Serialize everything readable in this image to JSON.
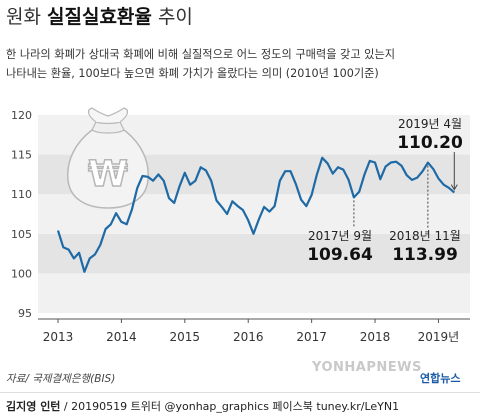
{
  "header": {
    "title_normal": "원화",
    "title_strong": "실질실효환율",
    "title_suffix": "추이",
    "subtitle_line1": "한 나라의 화폐가 상대국 화폐에 비해 실질적으로 어느 정도의 구매력을 갖고 있는지",
    "subtitle_line2": "나타내는 환율, 100보다 높으면 화폐 가치가 올랐다는 의미 (2010년 100기준)"
  },
  "chart_data": {
    "type": "line",
    "title": "원화 실질실효환율 추이",
    "ylim": [
      95,
      120
    ],
    "yticks": [
      95,
      100,
      105,
      110,
      115,
      120
    ],
    "xticks": [
      "2013",
      "2014",
      "2015",
      "2016",
      "2017",
      "2018",
      "2019년"
    ],
    "grid": "horizontal bands",
    "series_color": "#1f6aa5",
    "series": [
      {
        "name": "",
        "x": [
          "2013-01",
          "2013-02",
          "2013-03",
          "2013-04",
          "2013-05",
          "2013-06",
          "2013-07",
          "2013-08",
          "2013-09",
          "2013-10",
          "2013-11",
          "2013-12",
          "2014-01",
          "2014-02",
          "2014-03",
          "2014-04",
          "2014-05",
          "2014-06",
          "2014-07",
          "2014-08",
          "2014-09",
          "2014-10",
          "2014-11",
          "2014-12",
          "2015-01",
          "2015-02",
          "2015-03",
          "2015-04",
          "2015-05",
          "2015-06",
          "2015-07",
          "2015-08",
          "2015-09",
          "2015-10",
          "2015-11",
          "2015-12",
          "2016-01",
          "2016-02",
          "2016-03",
          "2016-04",
          "2016-05",
          "2016-06",
          "2016-07",
          "2016-08",
          "2016-09",
          "2016-10",
          "2016-11",
          "2016-12",
          "2017-01",
          "2017-02",
          "2017-03",
          "2017-04",
          "2017-05",
          "2017-06",
          "2017-07",
          "2017-08",
          "2017-09",
          "2017-10",
          "2017-11",
          "2017-12",
          "2018-01",
          "2018-02",
          "2018-03",
          "2018-04",
          "2018-05",
          "2018-06",
          "2018-07",
          "2018-08",
          "2018-09",
          "2018-10",
          "2018-11",
          "2018-12",
          "2019-01",
          "2019-02",
          "2019-03",
          "2019-04"
        ],
        "values": [
          105.4,
          103.3,
          103.0,
          101.9,
          102.6,
          100.2,
          101.9,
          102.4,
          103.6,
          105.6,
          106.2,
          107.6,
          106.5,
          106.2,
          108.1,
          110.8,
          112.3,
          112.2,
          111.7,
          112.5,
          111.7,
          109.5,
          108.9,
          111.0,
          112.7,
          111.2,
          111.7,
          113.4,
          113.0,
          111.7,
          109.2,
          108.4,
          107.5,
          109.1,
          108.5,
          108.0,
          106.7,
          105.0,
          106.8,
          108.4,
          107.8,
          108.5,
          111.7,
          112.9,
          112.9,
          111.3,
          109.3,
          108.5,
          109.9,
          112.5,
          114.6,
          113.9,
          112.6,
          113.4,
          113.1,
          111.8,
          109.6,
          110.3,
          112.5,
          114.2,
          114.0,
          111.9,
          113.5,
          114.0,
          114.1,
          113.6,
          112.4,
          111.8,
          112.1,
          112.9,
          113.99,
          113.2,
          112.0,
          111.2,
          110.8,
          110.2
        ]
      }
    ],
    "annotations": [
      {
        "label": "2017년 9월",
        "value": "109.64",
        "x": "2017-09"
      },
      {
        "label": "2018년 11월",
        "value": "113.99",
        "x": "2018-11"
      },
      {
        "label": "2019년 4월",
        "value": "110.20",
        "x": "2019-04"
      }
    ]
  },
  "source": "자료/ 국제결제은행(BIS)",
  "footer": {
    "author": "김지영 인턴",
    "meta": " / 20190519 트위터 @yonhap_graphics 페이스북 tuney.kr/LeYN1"
  },
  "logo_text": "YONHAPNEWS",
  "logo_ko": "연합뉴스",
  "icon": "money-bag-won-icon"
}
